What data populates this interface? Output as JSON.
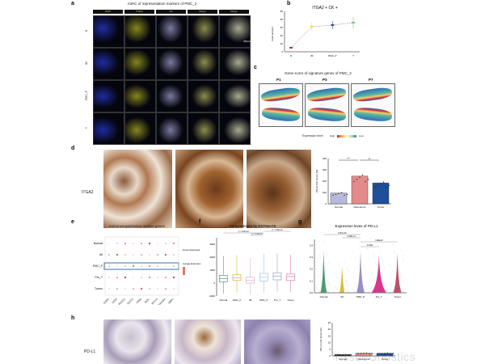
{
  "panel_a": {
    "label": "a",
    "title": "mIHC of representation markers of PMC_2",
    "columns": [
      "DAPI",
      "ITGA2",
      "CK",
      "Merge",
      "Merge"
    ],
    "rows": [
      "N",
      "IM",
      "PMC_P",
      "T"
    ],
    "scalebar": "200μm"
  },
  "panel_b": {
    "label": "b"
  },
  "panel_c": {
    "label": "c",
    "title": "Gene score of signature genes of PMC_2",
    "samples": [
      "P1",
      "P3",
      "P7"
    ],
    "legend_label": "Expression level",
    "legend_high": "High",
    "legend_low": "Low"
  },
  "panel_d": {
    "label": "d",
    "row_label": "ITGA2"
  },
  "panel_e": {
    "label": "e",
    "title": "Immunosuppressive marker genes",
    "rows": [
      "Normal",
      "IM",
      "PMC_P",
      "Pro_T",
      "Tumor"
    ],
    "genes": [
      "IL2RA",
      "CD33",
      "PDCD1",
      "CD274",
      "CD86",
      "IDO1",
      "HLA-G",
      "HAVCR2",
      "NRP1"
    ],
    "legend_pct": "Percent Expressed",
    "legend_avg": "Average Expression",
    "highlight_row": "PMC_P",
    "colors": {
      "dot": "#c0392b",
      "highlight": "#3a6ea5"
    }
  },
  "panel_f": {
    "label": "f"
  },
  "panel_g": {
    "label": "g"
  },
  "panel_h": {
    "label": "h",
    "row_label": "PD-L1"
  },
  "watermark": "TissueGnostics",
  "chart_data": [
    {
      "id": "b",
      "type": "line",
      "title": "ITGA2 + CK +",
      "ylabel": "Cells percent",
      "categories": [
        "N",
        "IM",
        "PMC_P",
        "T"
      ],
      "values": [
        5,
        31,
        33,
        36
      ],
      "errors": [
        1,
        5,
        5,
        7
      ],
      "ylim": [
        0,
        50
      ],
      "yticks": [
        0,
        10,
        20,
        30,
        40,
        50
      ],
      "colors": [
        "#d62728",
        "#e6e632",
        "#3b4a9a",
        "#7ac47a"
      ]
    },
    {
      "id": "d",
      "type": "bar",
      "ylabel": "ITGA2 IHC Score (%)",
      "categories": [
        "Normal",
        "Para-tumor",
        "Tumor"
      ],
      "values": [
        95,
        245,
        185
      ],
      "ylim": [
        0,
        400
      ],
      "yticks": [
        0,
        100,
        200,
        300,
        400
      ],
      "colors": [
        "#b7b9dc",
        "#e48a8a",
        "#1f4e9a"
      ],
      "significance": [
        "****",
        "ns"
      ]
    },
    {
      "id": "f",
      "type": "box",
      "title": "ImmuneScore by ESTIMATE",
      "categories": [
        "Normal",
        "GMC_P",
        "IM",
        "PMC_P",
        "Pro_T",
        "Tumor"
      ],
      "medians": [
        350,
        400,
        200,
        450,
        550,
        500
      ],
      "q1": [
        100,
        200,
        0,
        150,
        250,
        200
      ],
      "q3": [
        600,
        650,
        450,
        750,
        800,
        700
      ],
      "ylim": [
        -1000,
        3500
      ],
      "yticks": [
        -1000,
        0,
        1000,
        2000,
        3000
      ],
      "colors": [
        "#2e8b57",
        "#d4a017",
        "#d8a0c0",
        "#8fb8e0",
        "#7f8fbf",
        "#d36b8a"
      ],
      "pvalues": [
        "p < 2.22e-16",
        "p < 2.22e-16",
        "p < 2.22e-16"
      ]
    },
    {
      "id": "g",
      "type": "violin",
      "title": "Expression leves of PD-L1",
      "categories": [
        "Normal",
        "IM",
        "PMC_P",
        "Pro_T",
        "Tumor"
      ],
      "ylim": [
        0,
        0.45
      ],
      "yticks": [
        0.0,
        0.1,
        0.2,
        0.3,
        0.4
      ],
      "colors": [
        "#2e8b57",
        "#d4b017",
        "#8a7ab8",
        "#d0137a",
        "#b03050"
      ],
      "pvalues": [
        "3.457e-08",
        "3.843e-13",
        "3.27E4",
        "3.00E-09"
      ]
    },
    {
      "id": "h",
      "type": "bar",
      "ylabel": "PD-L1 IHC Score (%)",
      "categories": [
        "Normal",
        "Para-tumor",
        "Tumor"
      ],
      "values": [
        1,
        2,
        2
      ],
      "ylim": [
        0,
        25
      ],
      "yticks": [
        0,
        5,
        10,
        15,
        20,
        25
      ],
      "colors": [
        "#222222",
        "#e48a8a",
        "#1f4e9a"
      ]
    }
  ]
}
